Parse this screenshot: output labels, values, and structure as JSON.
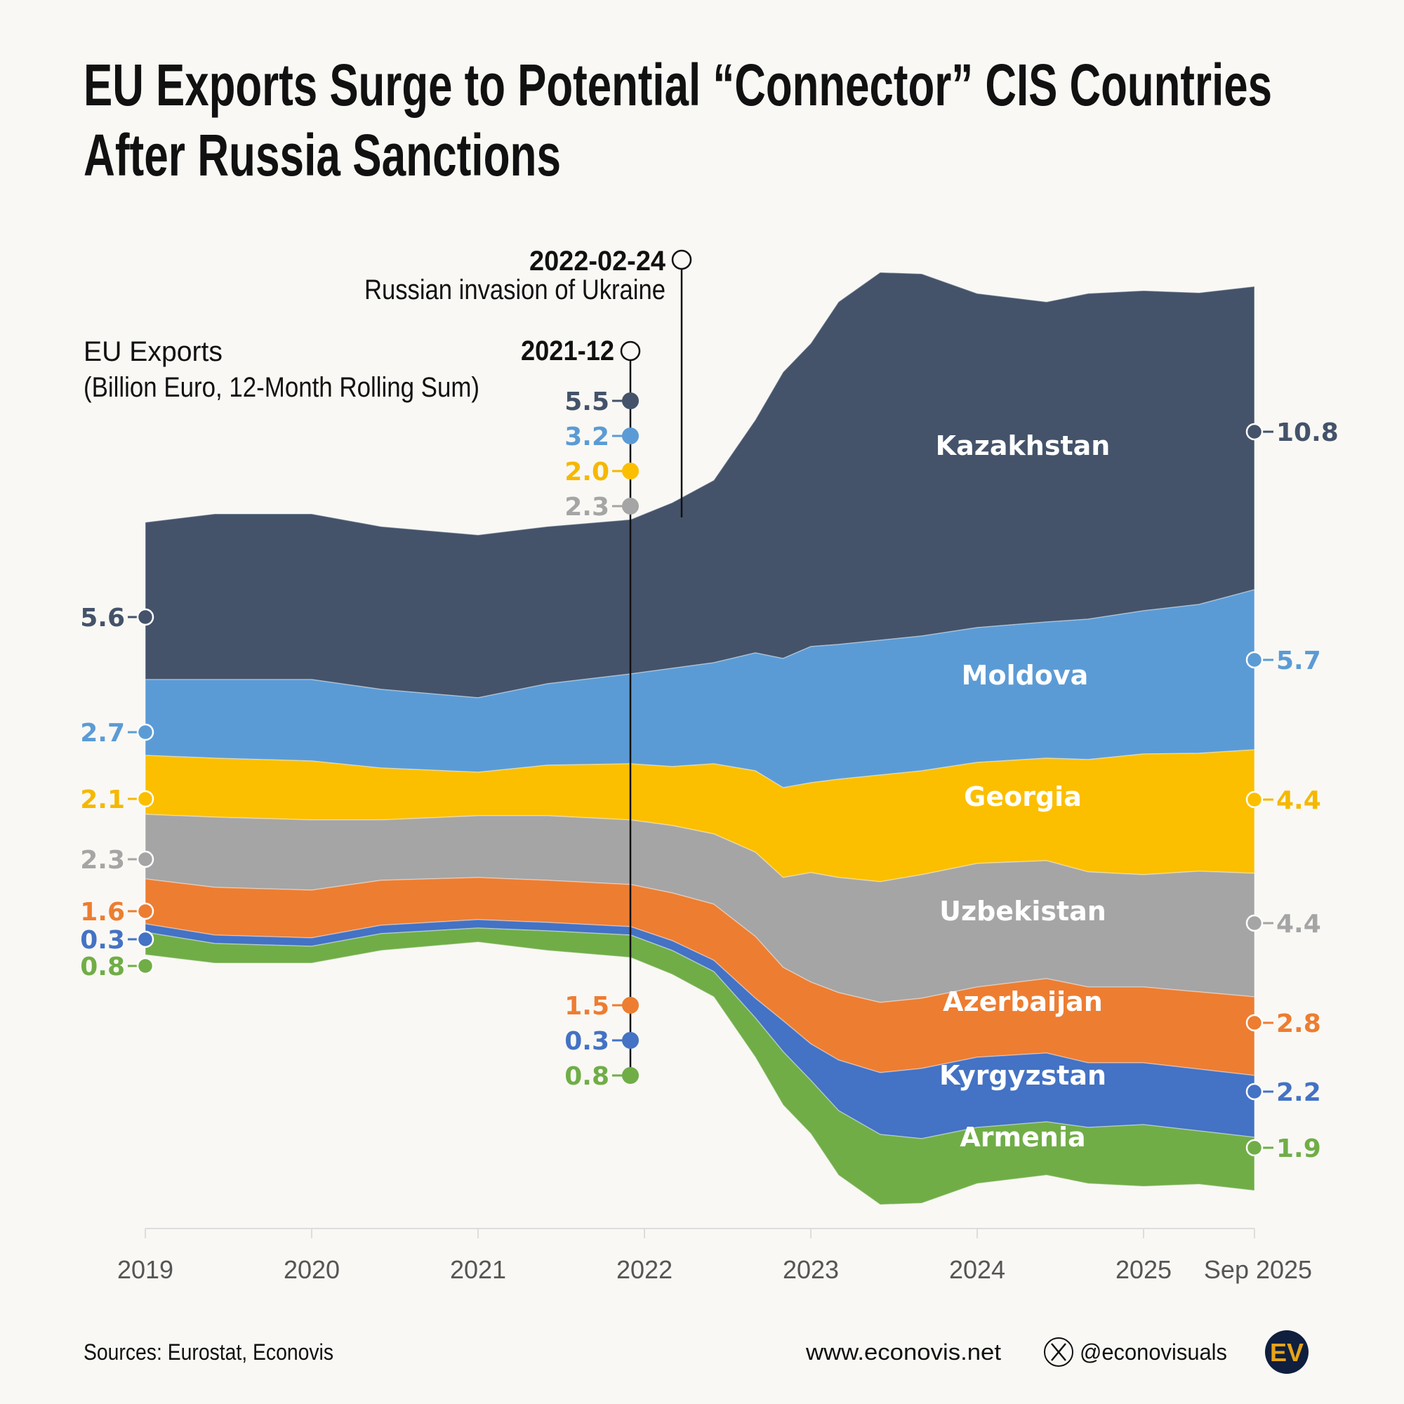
{
  "title_line1": "EU Exports Surge to Potential “Connector” CIS Countries",
  "title_line2": "After Russia Sanctions",
  "footer": {
    "sources": "Sources: Eurostat, Econovis",
    "website": "www.econovis.net",
    "handle": "@econovisuals",
    "x_icon": "x-logo-icon",
    "logo_text": "EV"
  },
  "chart_data": {
    "type": "area",
    "subtype": "streamgraph",
    "ylabel": "EU Exports",
    "ylabel_sub": "(Billion Euro, 12-Month Rolling Sum)",
    "x_ticks": [
      {
        "date": "2019-01",
        "label": "2019"
      },
      {
        "date": "2020-01",
        "label": "2020"
      },
      {
        "date": "2021-01",
        "label": "2021"
      },
      {
        "date": "2022-01",
        "label": "2022"
      },
      {
        "date": "2023-01",
        "label": "2023"
      },
      {
        "date": "2024-01",
        "label": "2024"
      },
      {
        "date": "2025-01",
        "label": "2025"
      },
      {
        "date": "2025-09",
        "label": "Sep 2025"
      }
    ],
    "x": [
      "2019-01",
      "2019-06",
      "2020-01",
      "2020-06",
      "2021-01",
      "2021-06",
      "2021-12",
      "2022-03",
      "2022-06",
      "2022-09",
      "2022-11",
      "2023-01",
      "2023-03",
      "2023-06",
      "2023-09",
      "2024-01",
      "2024-06",
      "2024-09",
      "2025-01",
      "2025-05",
      "2025-09"
    ],
    "series": [
      {
        "name": "Kazakhstan",
        "color": "#44536a",
        "label_color": "#44536a",
        "start_label": "5.6",
        "dec2021_label": "5.5",
        "end_label": "10.8",
        "values": [
          5.6,
          5.9,
          5.9,
          5.8,
          5.8,
          5.6,
          5.5,
          5.9,
          6.5,
          8.3,
          10.2,
          10.8,
          12.2,
          13.1,
          12.9,
          11.9,
          11.4,
          11.6,
          11.4,
          11.1,
          10.8
        ]
      },
      {
        "name": "Moldova",
        "color": "#5b9bd5",
        "label_color": "#5b9bd5",
        "start_label": "2.7",
        "dec2021_label": "3.2",
        "end_label": "5.7",
        "values": [
          2.7,
          2.8,
          2.9,
          2.8,
          2.65,
          2.9,
          3.2,
          3.5,
          3.6,
          4.2,
          4.6,
          4.85,
          4.8,
          4.8,
          4.8,
          4.8,
          4.85,
          5.0,
          5.1,
          5.3,
          5.7
        ]
      },
      {
        "name": "Georgia",
        "color": "#fbbf00",
        "label_color": "#f5b800",
        "start_label": "2.1",
        "dec2021_label": "2.0",
        "end_label": "4.4",
        "values": [
          2.1,
          2.1,
          2.1,
          1.85,
          1.55,
          1.8,
          2.0,
          2.1,
          2.5,
          2.9,
          3.2,
          3.2,
          3.5,
          3.8,
          3.7,
          3.6,
          3.65,
          4.0,
          4.3,
          4.2,
          4.4
        ]
      },
      {
        "name": "Uzbekistan",
        "color": "#a5a5a5",
        "label_color": "#a5a5a5",
        "start_label": "2.3",
        "dec2021_label": "2.3",
        "end_label": "4.4",
        "values": [
          2.3,
          2.5,
          2.5,
          2.15,
          2.2,
          2.3,
          2.3,
          2.4,
          2.5,
          3.0,
          3.2,
          3.9,
          4.1,
          4.3,
          4.4,
          4.4,
          4.2,
          4.1,
          4.0,
          4.3,
          4.4
        ]
      },
      {
        "name": "Azerbaijan",
        "color": "#ed7d31",
        "label_color": "#ed7d31",
        "start_label": "1.6",
        "dec2021_label": "1.5",
        "end_label": "2.8",
        "values": [
          1.6,
          1.7,
          1.7,
          1.6,
          1.5,
          1.5,
          1.5,
          1.7,
          2.0,
          2.2,
          1.9,
          2.2,
          2.4,
          2.5,
          2.5,
          2.5,
          2.65,
          2.7,
          2.7,
          2.75,
          2.8
        ]
      },
      {
        "name": "Kyrgyzstan",
        "color": "#4472c4",
        "label_color": "#4472c4",
        "start_label": "0.3",
        "dec2021_label": "0.3",
        "end_label": "2.2",
        "values": [
          0.3,
          0.3,
          0.3,
          0.3,
          0.3,
          0.3,
          0.3,
          0.35,
          0.4,
          0.7,
          1.1,
          1.3,
          1.8,
          2.2,
          2.5,
          2.5,
          2.45,
          2.3,
          2.2,
          2.2,
          2.2
        ]
      },
      {
        "name": "Armenia",
        "color": "#70ad47",
        "label_color": "#70ad47",
        "start_label": "0.8",
        "dec2021_label": "0.8",
        "end_label": "1.9",
        "values": [
          0.8,
          0.7,
          0.6,
          0.6,
          0.5,
          0.7,
          0.8,
          0.85,
          0.9,
          1.4,
          1.9,
          1.9,
          2.3,
          2.5,
          2.3,
          2.0,
          1.9,
          2.0,
          2.2,
          1.9,
          1.9
        ]
      }
    ],
    "annotations": [
      {
        "date": "2021-12",
        "label": "2021-12"
      },
      {
        "date": "2022-02-24",
        "label": "2022-02-24",
        "text": "Russian invasion of Ukraine"
      }
    ],
    "grid": false,
    "legend": "inline labels"
  }
}
